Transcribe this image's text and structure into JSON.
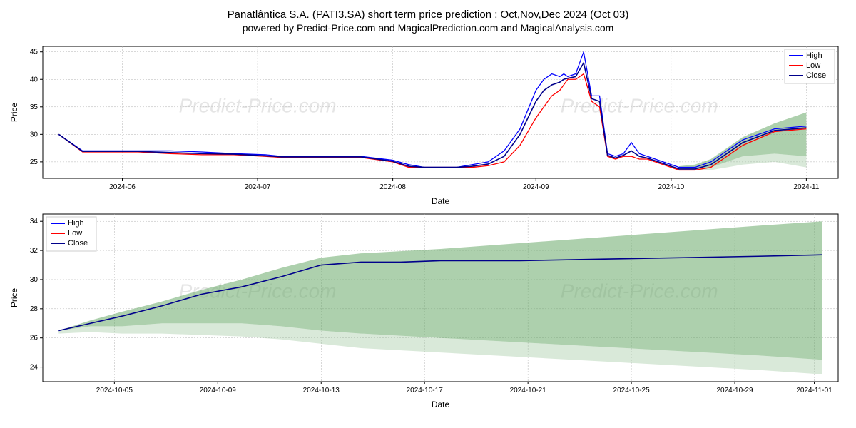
{
  "title": "Panatlântica S.A. (PATI3.SA) short term price prediction : Oct,Nov,Dec 2024 (Oct 03)",
  "subtitle": "powered by Predict-Price.com and MagicalPrediction.com and MagicalAnalysis.com",
  "watermark": "Predict-Price.com",
  "chart1": {
    "type": "line",
    "ylabel": "Price",
    "xlabel": "Date",
    "ylim": [
      22,
      46
    ],
    "yticks": [
      25,
      30,
      35,
      40,
      45
    ],
    "xticks_labels": [
      "2024-06",
      "2024-07",
      "2024-08",
      "2024-09",
      "2024-10",
      "2024-11"
    ],
    "xticks_pos": [
      0.1,
      0.27,
      0.44,
      0.62,
      0.79,
      0.96
    ],
    "background_color": "#ffffff",
    "grid_color": "#b0b0b0",
    "legend": {
      "items": [
        "High",
        "Low",
        "Close"
      ],
      "colors": [
        "#0000ff",
        "#ff0000",
        "#00008b"
      ],
      "position": "upper-right"
    },
    "series": {
      "high_x": [
        0.02,
        0.05,
        0.08,
        0.12,
        0.16,
        0.2,
        0.24,
        0.28,
        0.3,
        0.32,
        0.36,
        0.4,
        0.44,
        0.46,
        0.48,
        0.5,
        0.52,
        0.54,
        0.56,
        0.58,
        0.6,
        0.62,
        0.63,
        0.64,
        0.65,
        0.655,
        0.66,
        0.67,
        0.68,
        0.69,
        0.7,
        0.71,
        0.72,
        0.73,
        0.74,
        0.75,
        0.76,
        0.78,
        0.8,
        0.82,
        0.84,
        0.86,
        0.88,
        0.92,
        0.96
      ],
      "high_y": [
        30,
        27,
        27,
        27,
        27,
        26.8,
        26.5,
        26.3,
        26,
        26,
        26,
        26,
        25.3,
        24.5,
        24,
        24,
        24,
        24.5,
        25,
        27,
        31,
        38,
        40,
        41,
        40.5,
        41,
        40.5,
        41,
        45,
        37,
        37,
        26.5,
        26,
        26.5,
        28.5,
        26.5,
        26,
        25,
        24,
        24,
        25,
        27,
        29,
        31,
        31.5
      ],
      "low_x": [
        0.02,
        0.05,
        0.08,
        0.12,
        0.16,
        0.2,
        0.24,
        0.28,
        0.3,
        0.32,
        0.36,
        0.4,
        0.44,
        0.46,
        0.48,
        0.5,
        0.52,
        0.54,
        0.56,
        0.58,
        0.6,
        0.62,
        0.63,
        0.64,
        0.65,
        0.655,
        0.66,
        0.67,
        0.68,
        0.69,
        0.7,
        0.71,
        0.72,
        0.73,
        0.74,
        0.75,
        0.76,
        0.78,
        0.8,
        0.82,
        0.84,
        0.86,
        0.88,
        0.92,
        0.96
      ],
      "low_y": [
        30,
        26.8,
        26.8,
        26.8,
        26.5,
        26.3,
        26.3,
        26,
        25.8,
        25.8,
        25.8,
        25.8,
        25,
        24,
        24,
        24,
        24,
        24,
        24.3,
        25,
        28,
        33,
        35,
        37,
        38,
        39,
        40,
        40,
        41,
        36,
        35,
        26,
        25.5,
        26,
        26,
        25.5,
        25.5,
        24.5,
        23.5,
        23.5,
        24,
        26,
        28,
        30.5,
        31
      ],
      "close_x": [
        0.02,
        0.05,
        0.08,
        0.12,
        0.16,
        0.2,
        0.24,
        0.28,
        0.3,
        0.32,
        0.36,
        0.4,
        0.44,
        0.46,
        0.48,
        0.5,
        0.52,
        0.54,
        0.56,
        0.58,
        0.6,
        0.62,
        0.63,
        0.64,
        0.65,
        0.655,
        0.66,
        0.67,
        0.68,
        0.69,
        0.7,
        0.71,
        0.72,
        0.73,
        0.74,
        0.75,
        0.76,
        0.78,
        0.8,
        0.82,
        0.84,
        0.86,
        0.88,
        0.92,
        0.96
      ],
      "close_y": [
        30,
        26.9,
        26.9,
        26.9,
        26.7,
        26.5,
        26.4,
        26.1,
        25.9,
        25.9,
        25.9,
        25.9,
        25.1,
        24.2,
        24,
        24,
        24,
        24.2,
        24.6,
        26,
        30,
        36,
        38,
        39,
        39.5,
        40,
        40.2,
        40.5,
        43,
        36.5,
        36,
        26.2,
        25.7,
        26.2,
        27,
        26,
        25.7,
        24.7,
        23.7,
        23.7,
        24.5,
        26.5,
        28.5,
        30.7,
        31.2
      ]
    },
    "forecast": {
      "x": [
        0.8,
        0.82,
        0.84,
        0.86,
        0.88,
        0.92,
        0.96
      ],
      "upper": [
        24.2,
        24.5,
        25.5,
        27.5,
        29.5,
        32,
        34
      ],
      "lower": [
        23.8,
        23.7,
        24,
        25,
        26,
        26.5,
        26
      ],
      "lower2": [
        23.6,
        23.5,
        23.5,
        24,
        24.5,
        25,
        24
      ],
      "fill_color": "#6aaa6a",
      "fill_opacity": 0.55,
      "fill_color2": "#a0c8a0",
      "fill_opacity2": 0.4
    }
  },
  "chart2": {
    "type": "line",
    "ylabel": "Price",
    "xlabel": "Date",
    "ylim": [
      23,
      34.5
    ],
    "yticks": [
      24,
      26,
      28,
      30,
      32,
      34
    ],
    "xticks_labels": [
      "2024-10-05",
      "2024-10-09",
      "2024-10-13",
      "2024-10-17",
      "2024-10-21",
      "2024-10-25",
      "2024-10-29",
      "2024-11-01"
    ],
    "xticks_pos": [
      0.09,
      0.22,
      0.35,
      0.48,
      0.61,
      0.74,
      0.87,
      0.97
    ],
    "background_color": "#ffffff",
    "grid_color": "#b0b0b0",
    "legend": {
      "items": [
        "High",
        "Low",
        "Close"
      ],
      "colors": [
        "#0000ff",
        "#ff0000",
        "#00008b"
      ],
      "position": "upper-left"
    },
    "series": {
      "close_x": [
        0.02,
        0.06,
        0.1,
        0.15,
        0.2,
        0.25,
        0.3,
        0.35,
        0.4,
        0.45,
        0.5,
        0.6,
        0.7,
        0.8,
        0.9,
        0.98
      ],
      "close_y": [
        26.5,
        27,
        27.5,
        28.2,
        29,
        29.5,
        30.2,
        31,
        31.2,
        31.2,
        31.3,
        31.3,
        31.4,
        31.5,
        31.6,
        31.7
      ]
    },
    "forecast": {
      "x": [
        0.02,
        0.06,
        0.1,
        0.15,
        0.2,
        0.25,
        0.3,
        0.35,
        0.4,
        0.5,
        0.6,
        0.7,
        0.8,
        0.9,
        0.98
      ],
      "upper": [
        26.5,
        27.2,
        27.8,
        28.5,
        29.3,
        30,
        30.8,
        31.5,
        31.8,
        32.1,
        32.5,
        32.9,
        33.3,
        33.7,
        34
      ],
      "lower": [
        26.5,
        26.8,
        26.8,
        27,
        27,
        27,
        26.8,
        26.5,
        26.3,
        26,
        25.7,
        25.4,
        25.1,
        24.8,
        24.5
      ],
      "lower2": [
        26.3,
        26.4,
        26.3,
        26.3,
        26.2,
        26.1,
        25.9,
        25.6,
        25.3,
        25,
        24.7,
        24.4,
        24.1,
        23.8,
        23.5
      ],
      "fill_color": "#6aaa6a",
      "fill_opacity": 0.55,
      "fill_color2": "#a0c8a0",
      "fill_opacity2": 0.4
    }
  }
}
